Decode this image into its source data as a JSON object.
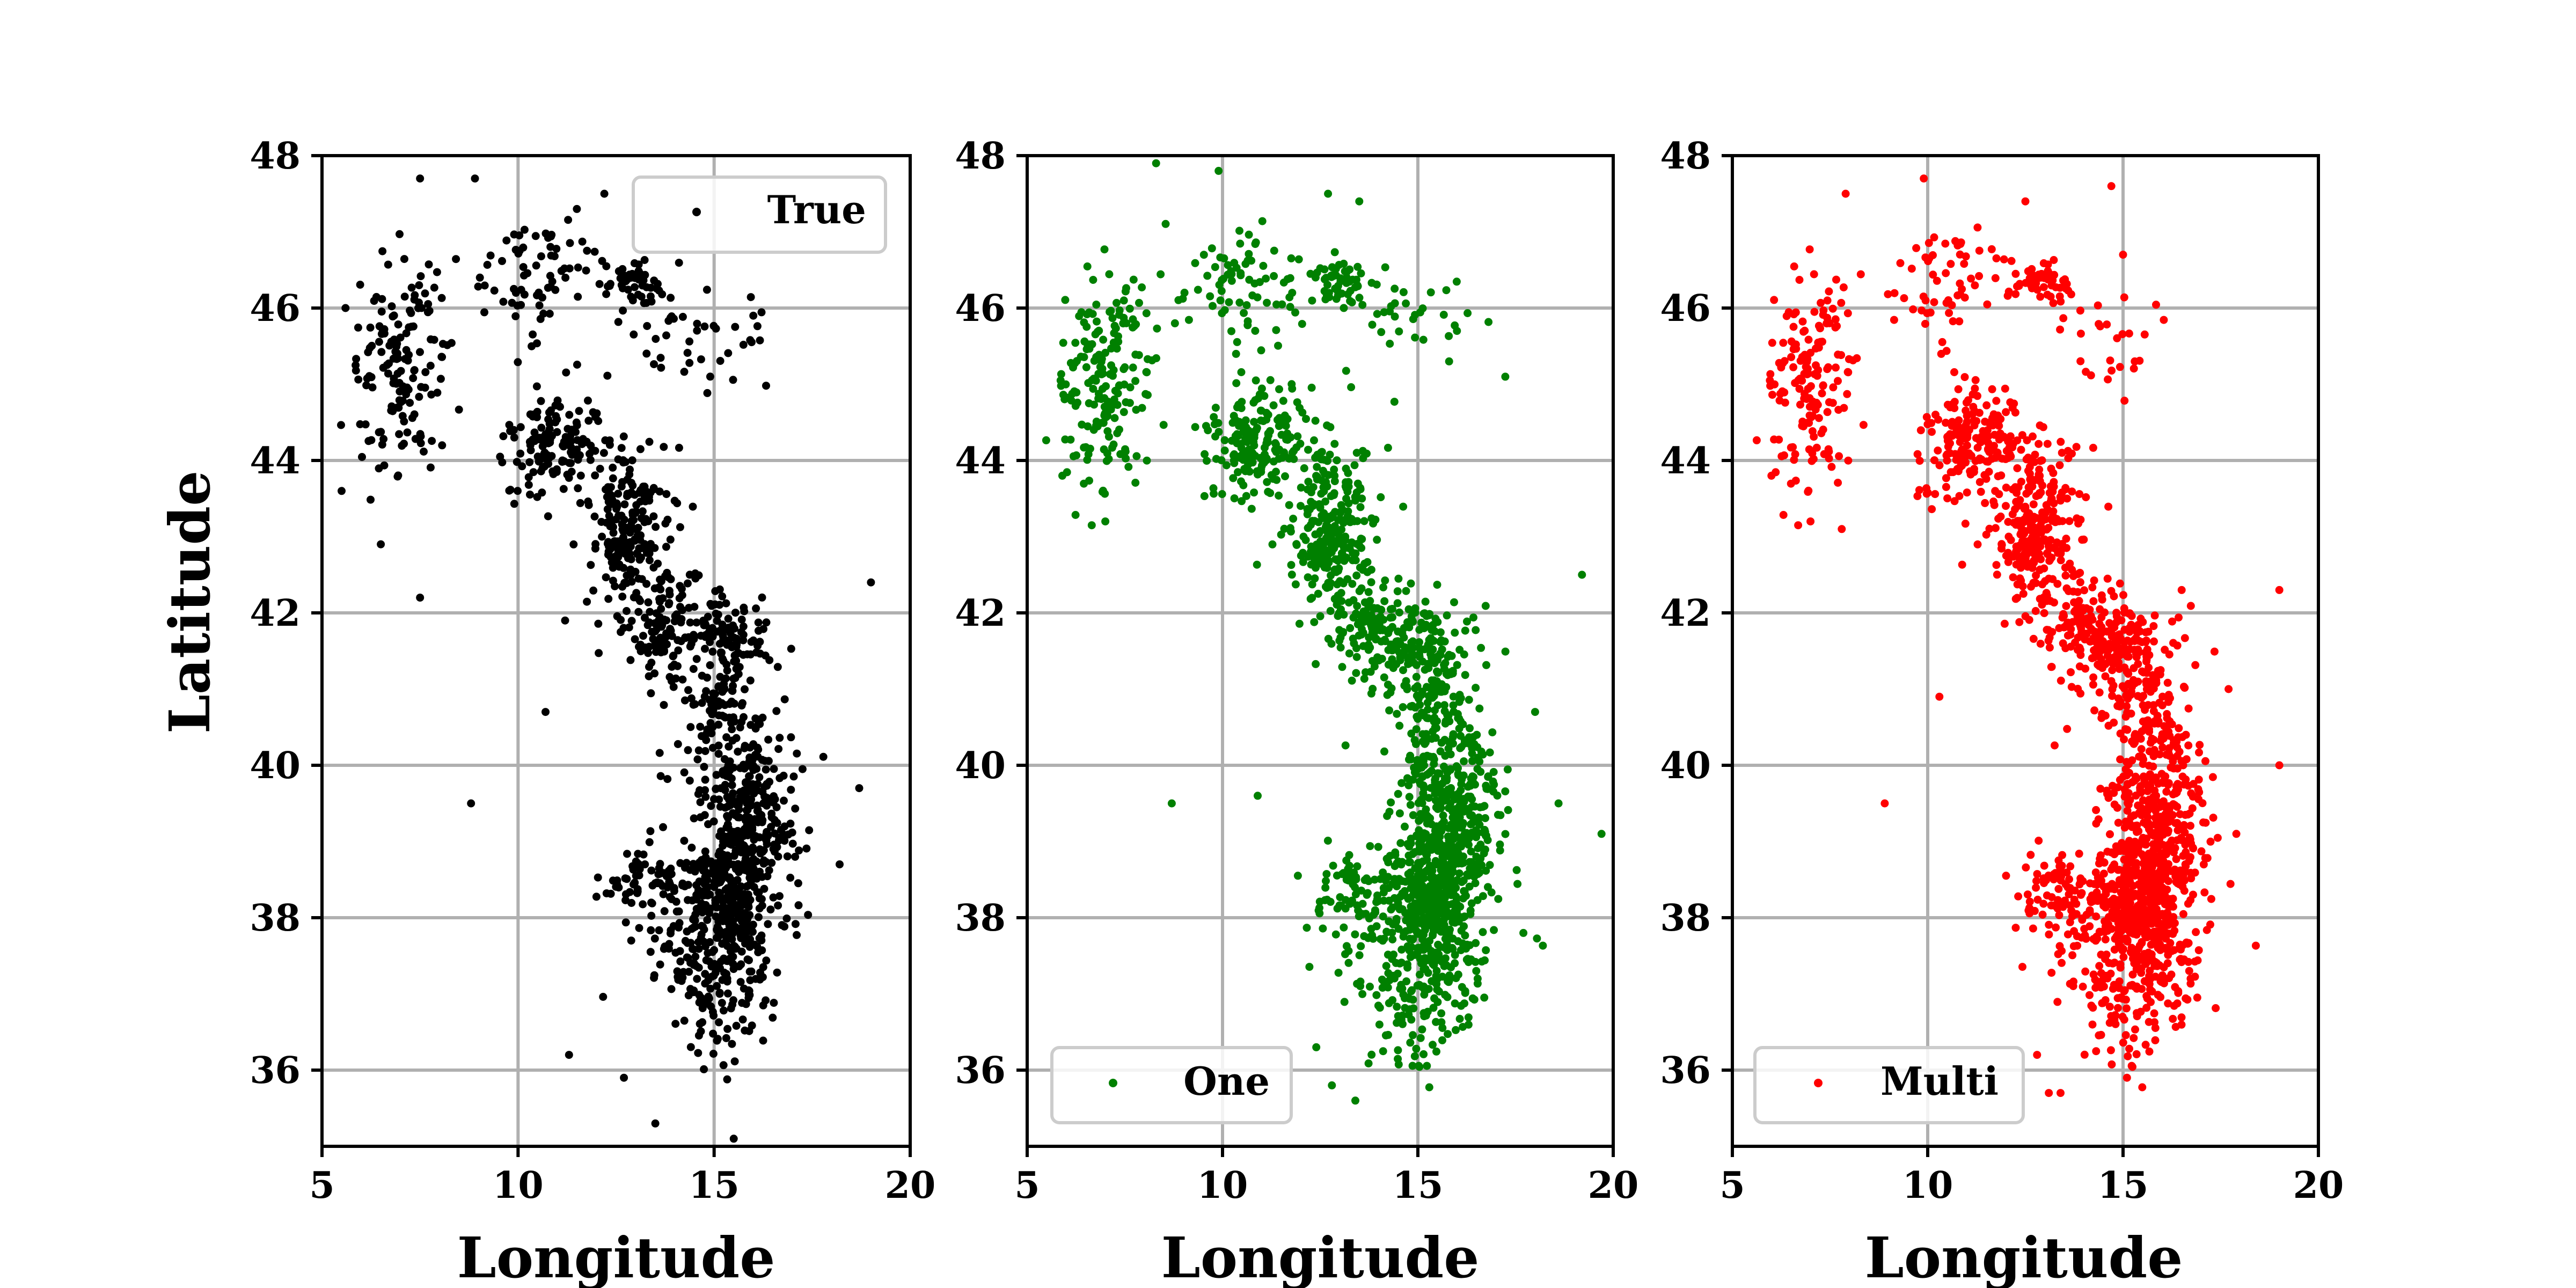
{
  "chart_data": [
    {
      "type": "scatter",
      "xlabel": "Longitude",
      "ylabel": "Latitude",
      "xlim": [
        5,
        20
      ],
      "ylim": [
        35,
        48
      ],
      "xticks": [
        5,
        10,
        15,
        20
      ],
      "yticks": [
        36,
        38,
        40,
        42,
        44,
        46,
        48
      ],
      "grid": true,
      "legend_position": "upper-right",
      "color": "#000000",
      "series": [
        {
          "name": "True",
          "clusters": [
            {
              "x": 7.0,
              "y": 45.2,
              "sx": 0.55,
              "sy": 0.75,
              "n": 150
            },
            {
              "x": 10.5,
              "y": 46.4,
              "sx": 0.8,
              "sy": 0.45,
              "n": 70
            },
            {
              "x": 13.0,
              "y": 46.35,
              "sx": 0.35,
              "sy": 0.15,
              "n": 45
            },
            {
              "x": 14.5,
              "y": 45.7,
              "sx": 1.1,
              "sy": 0.35,
              "n": 45
            },
            {
              "x": 11.0,
              "y": 44.15,
              "sx": 0.7,
              "sy": 0.3,
              "n": 140
            },
            {
              "x": 12.8,
              "y": 43.1,
              "sx": 0.5,
              "sy": 0.5,
              "n": 200
            },
            {
              "x": 13.8,
              "y": 41.8,
              "sx": 0.5,
              "sy": 0.35,
              "n": 110
            },
            {
              "x": 15.4,
              "y": 41.7,
              "sx": 0.55,
              "sy": 0.3,
              "n": 90
            },
            {
              "x": 15.4,
              "y": 40.6,
              "sx": 0.6,
              "sy": 0.55,
              "n": 130
            },
            {
              "x": 15.9,
              "y": 39.3,
              "sx": 0.65,
              "sy": 0.5,
              "n": 260
            },
            {
              "x": 15.3,
              "y": 38.3,
              "sx": 0.45,
              "sy": 0.35,
              "n": 200
            },
            {
              "x": 13.4,
              "y": 38.5,
              "sx": 0.65,
              "sy": 0.2,
              "n": 70
            },
            {
              "x": 15.0,
              "y": 37.6,
              "sx": 0.9,
              "sy": 0.45,
              "n": 180
            },
            {
              "x": 15.2,
              "y": 36.8,
              "sx": 0.6,
              "sy": 0.4,
              "n": 60
            }
          ],
          "outliers": [
            [
              5.5,
              43.6
            ],
            [
              6.5,
              42.9
            ],
            [
              7.5,
              42.2
            ],
            [
              11.2,
              41.9
            ],
            [
              10.7,
              40.7
            ],
            [
              8.8,
              39.5
            ],
            [
              11.3,
              36.2
            ],
            [
              12.7,
              35.9
            ],
            [
              13.5,
              35.3
            ],
            [
              15.5,
              35.1
            ],
            [
              19.0,
              42.4
            ],
            [
              18.7,
              39.7
            ],
            [
              18.2,
              38.7
            ],
            [
              7.5,
              47.7
            ],
            [
              8.9,
              47.7
            ],
            [
              12.2,
              47.5
            ],
            [
              11.5,
              47.3
            ],
            [
              14.9,
              45.1
            ],
            [
              5.6,
              46.0
            ],
            [
              16.0,
              45.9
            ]
          ]
        }
      ]
    },
    {
      "type": "scatter",
      "xlabel": "Longitude",
      "ylabel": "",
      "xlim": [
        5,
        20
      ],
      "ylim": [
        35,
        48
      ],
      "xticks": [
        5,
        10,
        15,
        20
      ],
      "yticks": [
        36,
        38,
        40,
        42,
        44,
        46,
        48
      ],
      "grid": true,
      "legend_position": "lower-left",
      "color": "#008000",
      "series": [
        {
          "name": "One",
          "clusters": [
            {
              "x": 7.0,
              "y": 45.0,
              "sx": 0.55,
              "sy": 0.75,
              "n": 190
            },
            {
              "x": 10.5,
              "y": 46.3,
              "sx": 0.8,
              "sy": 0.45,
              "n": 80
            },
            {
              "x": 13.0,
              "y": 46.35,
              "sx": 0.35,
              "sy": 0.15,
              "n": 55
            },
            {
              "x": 14.7,
              "y": 45.8,
              "sx": 0.9,
              "sy": 0.35,
              "n": 35
            },
            {
              "x": 11.0,
              "y": 44.2,
              "sx": 0.7,
              "sy": 0.35,
              "n": 190
            },
            {
              "x": 12.8,
              "y": 43.1,
              "sx": 0.55,
              "sy": 0.5,
              "n": 250
            },
            {
              "x": 14.0,
              "y": 41.8,
              "sx": 0.55,
              "sy": 0.35,
              "n": 130
            },
            {
              "x": 15.3,
              "y": 41.5,
              "sx": 0.55,
              "sy": 0.35,
              "n": 110
            },
            {
              "x": 15.5,
              "y": 40.6,
              "sx": 0.6,
              "sy": 0.55,
              "n": 150
            },
            {
              "x": 15.9,
              "y": 39.3,
              "sx": 0.65,
              "sy": 0.5,
              "n": 300
            },
            {
              "x": 15.3,
              "y": 38.3,
              "sx": 0.5,
              "sy": 0.4,
              "n": 260
            },
            {
              "x": 13.4,
              "y": 38.4,
              "sx": 0.6,
              "sy": 0.25,
              "n": 70
            },
            {
              "x": 15.0,
              "y": 37.6,
              "sx": 0.9,
              "sy": 0.45,
              "n": 220
            },
            {
              "x": 14.8,
              "y": 36.7,
              "sx": 0.7,
              "sy": 0.4,
              "n": 70
            }
          ],
          "outliers": [
            [
              8.3,
              47.9
            ],
            [
              9.9,
              47.8
            ],
            [
              12.7,
              47.5
            ],
            [
              13.5,
              47.4
            ],
            [
              16.0,
              45.7
            ],
            [
              15.8,
              45.3
            ],
            [
              7.0,
              43.2
            ],
            [
              19.2,
              42.5
            ],
            [
              19.7,
              39.1
            ],
            [
              18.6,
              39.5
            ],
            [
              8.7,
              39.5
            ],
            [
              10.9,
              39.6
            ],
            [
              12.4,
              36.3
            ],
            [
              12.8,
              35.8
            ],
            [
              13.4,
              35.6
            ],
            [
              17.7,
              37.8
            ],
            [
              18.0,
              40.7
            ],
            [
              5.9,
              43.8
            ]
          ]
        }
      ]
    },
    {
      "type": "scatter",
      "xlabel": "Longitude",
      "ylabel": "",
      "xlim": [
        5,
        20
      ],
      "ylim": [
        35,
        48
      ],
      "xticks": [
        5,
        10,
        15,
        20
      ],
      "yticks": [
        36,
        38,
        40,
        42,
        44,
        46,
        48
      ],
      "grid": true,
      "legend_position": "lower-left",
      "color": "#ff0000",
      "series": [
        {
          "name": "Multi",
          "clusters": [
            {
              "x": 7.0,
              "y": 45.0,
              "sx": 0.5,
              "sy": 0.75,
              "n": 160
            },
            {
              "x": 10.5,
              "y": 46.3,
              "sx": 0.8,
              "sy": 0.45,
              "n": 60
            },
            {
              "x": 13.0,
              "y": 46.35,
              "sx": 0.35,
              "sy": 0.15,
              "n": 50
            },
            {
              "x": 14.8,
              "y": 45.6,
              "sx": 0.8,
              "sy": 0.35,
              "n": 25
            },
            {
              "x": 11.2,
              "y": 44.2,
              "sx": 0.7,
              "sy": 0.35,
              "n": 200
            },
            {
              "x": 12.8,
              "y": 43.1,
              "sx": 0.55,
              "sy": 0.5,
              "n": 260
            },
            {
              "x": 14.1,
              "y": 41.8,
              "sx": 0.55,
              "sy": 0.35,
              "n": 130
            },
            {
              "x": 15.3,
              "y": 41.5,
              "sx": 0.55,
              "sy": 0.35,
              "n": 110
            },
            {
              "x": 15.6,
              "y": 40.6,
              "sx": 0.6,
              "sy": 0.55,
              "n": 140
            },
            {
              "x": 15.9,
              "y": 39.2,
              "sx": 0.65,
              "sy": 0.5,
              "n": 300
            },
            {
              "x": 15.4,
              "y": 38.2,
              "sx": 0.5,
              "sy": 0.4,
              "n": 280
            },
            {
              "x": 13.6,
              "y": 38.4,
              "sx": 0.65,
              "sy": 0.25,
              "n": 90
            },
            {
              "x": 15.2,
              "y": 37.6,
              "sx": 0.9,
              "sy": 0.45,
              "n": 230
            },
            {
              "x": 15.0,
              "y": 36.7,
              "sx": 0.7,
              "sy": 0.4,
              "n": 60
            }
          ],
          "outliers": [
            [
              9.9,
              47.7
            ],
            [
              12.5,
              47.4
            ],
            [
              14.7,
              47.6
            ],
            [
              7.9,
              47.5
            ],
            [
              15.0,
              46.7
            ],
            [
              15.3,
              45.3
            ],
            [
              7.0,
              43.2
            ],
            [
              7.8,
              43.1
            ],
            [
              19.0,
              42.3
            ],
            [
              19.0,
              40.0
            ],
            [
              17.7,
              41.0
            ],
            [
              17.9,
              39.1
            ],
            [
              8.9,
              39.5
            ],
            [
              10.3,
              40.9
            ],
            [
              12.8,
              36.2
            ],
            [
              13.1,
              35.7
            ],
            [
              13.4,
              35.7
            ],
            [
              15.1,
              35.9
            ],
            [
              16.5,
              42.3
            ],
            [
              6.0,
              43.8
            ]
          ]
        }
      ]
    }
  ]
}
